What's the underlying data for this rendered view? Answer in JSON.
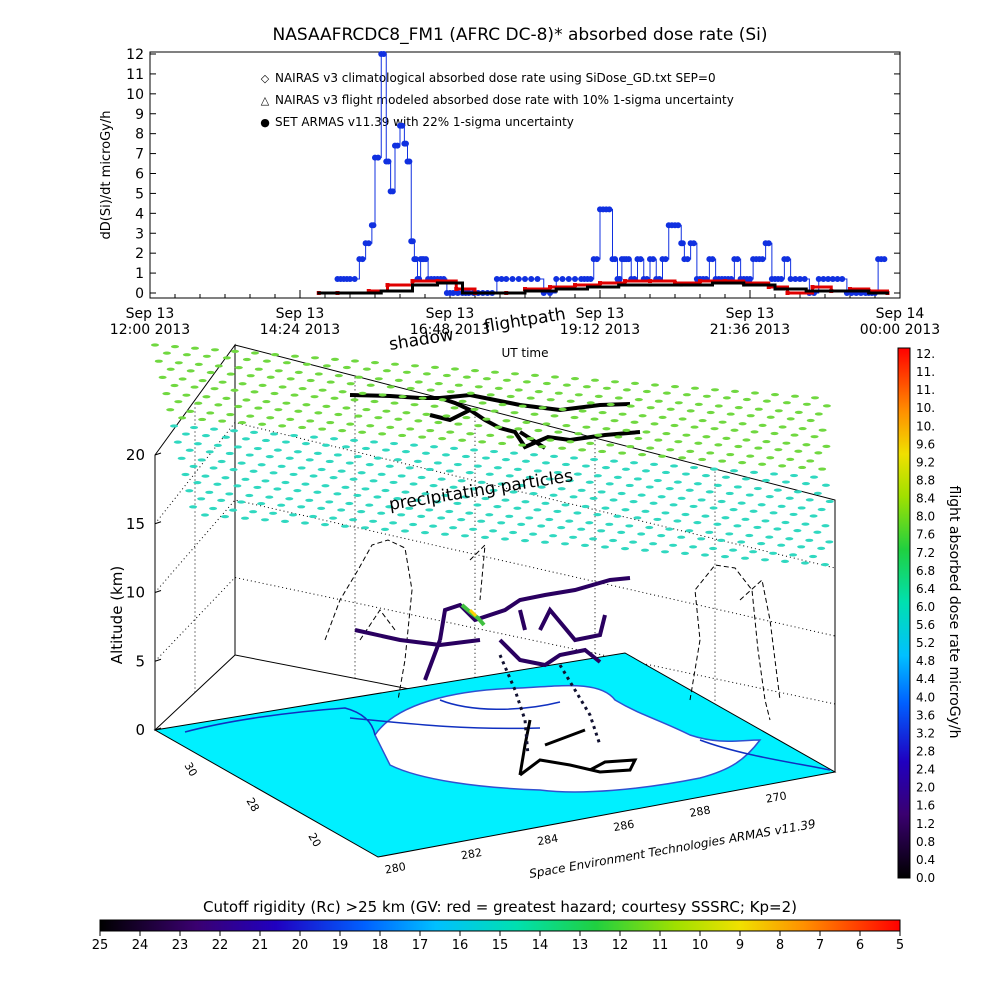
{
  "chart_data": [
    {
      "type": "scatter",
      "title": "NASAAFRCDC8_FM1 (AFRC DC-8)* absorbed dose rate (Si)",
      "xlabel": "UT time",
      "ylabel": "dD(Si)/dt microGy/h",
      "ylim": [
        0,
        12
      ],
      "yticks": [
        "0",
        "1",
        "2",
        "3",
        "4",
        "5",
        "6",
        "7",
        "8",
        "9",
        "10",
        "11",
        "12"
      ],
      "xticks": [
        {
          "line1": "Sep 13",
          "line2": "12:00 2013"
        },
        {
          "line1": "Sep 13",
          "line2": "14:24 2013"
        },
        {
          "line1": "Sep 13",
          "line2": "16:48 2013"
        },
        {
          "line1": "Sep 13",
          "line2": "19:12 2013"
        },
        {
          "line1": "Sep 13",
          "line2": "21:36 2013"
        },
        {
          "line1": "Sep 14",
          "line2": "00:00 2013"
        }
      ],
      "xlim_hours": [
        12,
        24
      ],
      "legend": [
        {
          "label": "NAIRAS v3 climatological absorbed dose rate using SiDose_GD.txt SEP=0",
          "symbol": "◇",
          "color": "#e00000"
        },
        {
          "label": "NAIRAS v3 flight modeled absorbed dose rate with 10% 1-sigma uncertainty",
          "symbol": "△",
          "color": "#000000"
        },
        {
          "label": "SET ARMAS v11.39 with 22% 1-sigma uncertainty",
          "symbol": "●",
          "color": "#1030e0"
        }
      ],
      "series": [
        {
          "name": "SET ARMAS v11.39 with 22% 1-sigma uncertainty",
          "color": "#1030e0",
          "x": [
            15.0,
            15.1,
            15.2,
            15.35,
            15.45,
            15.55,
            15.6,
            15.7,
            15.78,
            15.85,
            15.92,
            16.0,
            16.07,
            16.12,
            16.18,
            16.23,
            16.28,
            16.33,
            16.38,
            16.45,
            16.55,
            16.65,
            16.75,
            16.85,
            17.0,
            17.1,
            17.25,
            17.4,
            17.55,
            17.7,
            17.9,
            18.1,
            18.3,
            18.5,
            18.7,
            18.9,
            19.0,
            19.1,
            19.2,
            19.3,
            19.4,
            19.48,
            19.55,
            19.62,
            19.7,
            19.8,
            19.9,
            20.0,
            20.1,
            20.2,
            20.3,
            20.4,
            20.5,
            20.55,
            20.65,
            20.75,
            20.85,
            20.95,
            21.05,
            21.15,
            21.25,
            21.35,
            21.45,
            21.55,
            21.65,
            21.75,
            21.85,
            21.95,
            22.05,
            22.15,
            22.25,
            22.4,
            22.55,
            22.7,
            22.85,
            23.0,
            23.15,
            23.3,
            23.45,
            23.55,
            23.65,
            23.75
          ],
          "values": [
            0.7,
            0.7,
            0.7,
            1.7,
            2.5,
            3.4,
            6.8,
            12.0,
            6.6,
            5.1,
            7.4,
            8.4,
            7.5,
            6.6,
            2.6,
            1.7,
            0.7,
            1.7,
            1.7,
            0.7,
            0.7,
            0.7,
            0.0,
            0.0,
            0.0,
            0.0,
            0.0,
            0.0,
            0.7,
            0.7,
            0.7,
            0.7,
            0.0,
            0.7,
            0.7,
            0.7,
            0.7,
            1.7,
            4.2,
            4.2,
            1.7,
            0.7,
            1.7,
            1.7,
            0.7,
            1.7,
            0.7,
            1.7,
            0.7,
            1.7,
            3.4,
            3.4,
            2.5,
            1.7,
            2.5,
            0.7,
            0.7,
            1.7,
            0.7,
            0.7,
            0.7,
            1.7,
            0.7,
            0.7,
            1.7,
            1.7,
            2.5,
            0.7,
            0.7,
            1.7,
            0.7,
            0.7,
            0.0,
            0.7,
            0.7,
            0.7,
            0.0,
            0.0,
            0.0,
            0.0,
            1.7,
            1.7
          ]
        },
        {
          "name": "NAIRAS v3 climatological absorbed dose rate using SiDose_GD.txt SEP=0",
          "color": "#e00000",
          "x": [
            14.7,
            15.0,
            15.5,
            15.8,
            16.2,
            16.6,
            16.9,
            17.2,
            17.7,
            18.0,
            18.4,
            18.8,
            19.2,
            19.6,
            20.0,
            20.4,
            20.8,
            21.2,
            21.5,
            21.9,
            22.2,
            22.6,
            22.9,
            23.2,
            23.5,
            23.8
          ],
          "values": [
            0.0,
            0.0,
            0.1,
            0.4,
            0.6,
            0.6,
            0.2,
            0.0,
            0.0,
            0.2,
            0.3,
            0.4,
            0.5,
            0.6,
            0.6,
            0.5,
            0.6,
            0.6,
            0.5,
            0.3,
            0.0,
            0.3,
            0.1,
            0.2,
            0.1,
            0.0
          ]
        },
        {
          "name": "NAIRAS v3 flight modeled absorbed dose rate with 10% 1-sigma uncertainty",
          "color": "#000000",
          "x": [
            14.7,
            15.2,
            15.7,
            16.2,
            16.6,
            17.0,
            17.5,
            18.0,
            18.5,
            19.0,
            19.5,
            20.0,
            20.5,
            21.0,
            21.5,
            22.0,
            22.5,
            23.0,
            23.5,
            23.8
          ],
          "values": [
            0.0,
            0.0,
            0.1,
            0.4,
            0.5,
            0.0,
            0.0,
            0.1,
            0.2,
            0.3,
            0.4,
            0.4,
            0.4,
            0.5,
            0.4,
            0.2,
            0.1,
            0.1,
            0.0,
            0.0
          ]
        }
      ]
    },
    {
      "type": "scatter",
      "zlabel": "Altitude (km)",
      "zticks": [
        "0",
        "5",
        "10",
        "15",
        "20"
      ],
      "xticks": [
        "280",
        "282",
        "284",
        "286",
        "288",
        "270"
      ],
      "yticks": [
        "30",
        "28",
        "20"
      ],
      "annotations": [
        "flightpath",
        "shadow",
        "precipitating particles"
      ],
      "source_label": "Space Environment Technologies ARMAS v11.39",
      "colorbar": {
        "label": "flight absorbed dose rate microGy/h",
        "ticks": [
          "12.",
          "11.",
          "11.",
          "10.",
          "10.",
          "9.6",
          "9.2",
          "8.8",
          "8.4",
          "8.0",
          "7.6",
          "7.2",
          "6.8",
          "6.4",
          "6.0",
          "5.6",
          "5.2",
          "4.8",
          "4.4",
          "4.0",
          "3.6",
          "3.2",
          "2.8",
          "2.4",
          "2.0",
          "1.6",
          "1.2",
          "0.8",
          "0.4",
          "0.0"
        ]
      }
    },
    {
      "type": "heatmap",
      "colorbar": {
        "label": "Cutoff rigidity (Rc) >25 km (GV: red = greatest hazard; courtesy SSSRC; Kp=2)",
        "ticks": [
          "25",
          "24",
          "23",
          "22",
          "21",
          "20",
          "19",
          "18",
          "17",
          "16",
          "15",
          "14",
          "13",
          "12",
          "11",
          "10",
          "9",
          "8",
          "7",
          "6",
          "5"
        ]
      }
    }
  ]
}
